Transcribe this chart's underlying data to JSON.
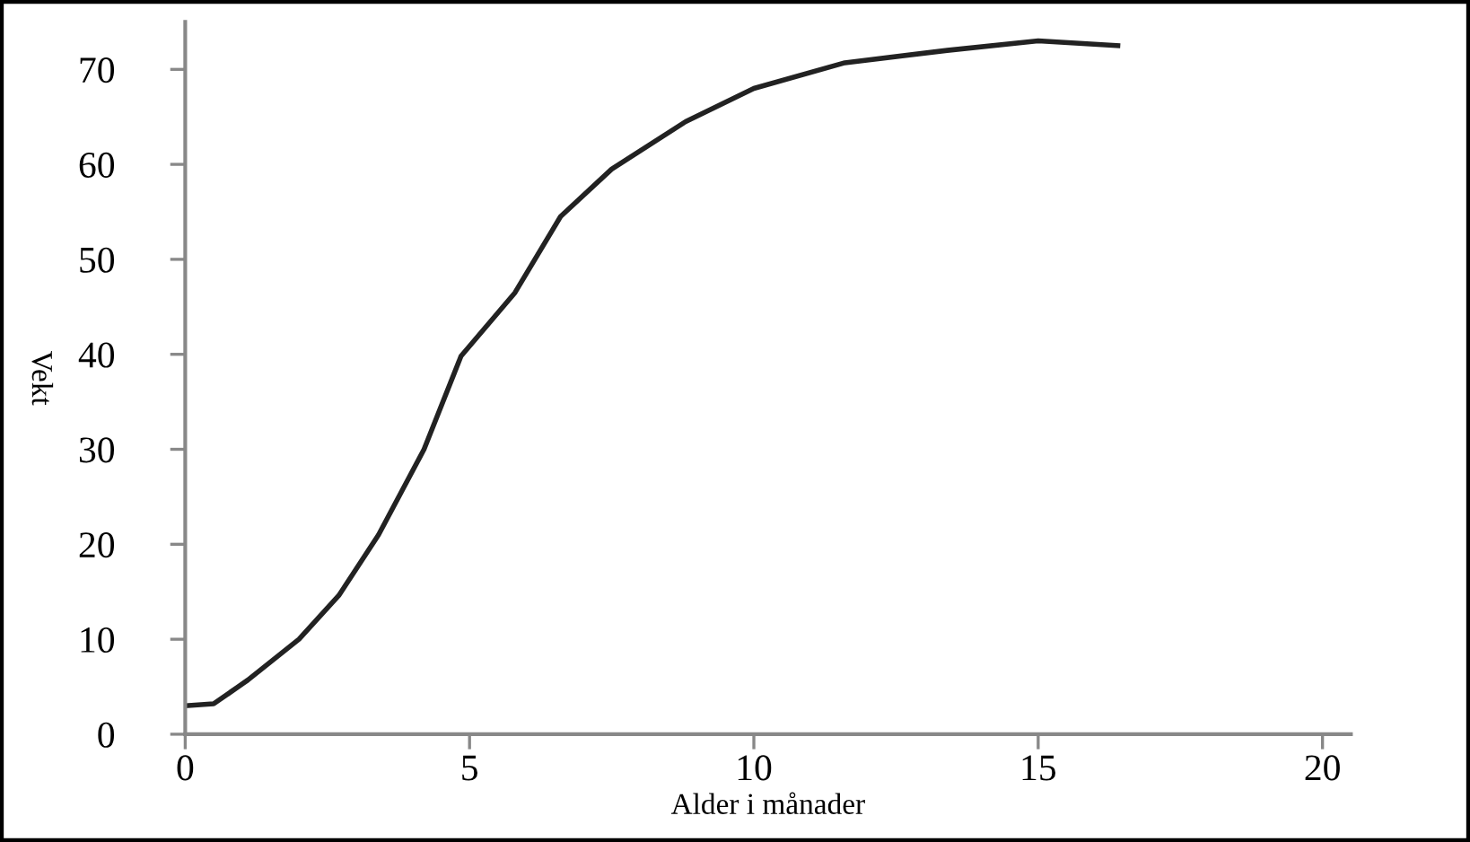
{
  "chart_data": {
    "type": "line",
    "xlabel": "Alder i månader",
    "ylabel": "Vekt",
    "x": [
      0,
      0.5,
      1.1,
      2.0,
      2.7,
      3.4,
      4.2,
      4.85,
      5.8,
      6.6,
      7.5,
      8.8,
      10.0,
      11.6,
      13.4,
      15.0,
      16.4
    ],
    "series": [
      {
        "color": "#222222",
        "values": [
          3,
          3.2,
          5.7,
          10,
          14.6,
          21,
          30,
          39.8,
          46.5,
          54.5,
          59.5,
          64.5,
          68,
          70.7,
          72,
          73,
          72.5
        ]
      }
    ],
    "xlim": [
      0,
      20.5
    ],
    "ylim": [
      0,
      75
    ],
    "xticks": [
      0,
      5,
      10,
      15,
      20
    ],
    "yticks": [
      0,
      10,
      20,
      30,
      40,
      50,
      60,
      70
    ],
    "grid": false,
    "legend": false,
    "marker": "none",
    "line_style": "solid"
  }
}
